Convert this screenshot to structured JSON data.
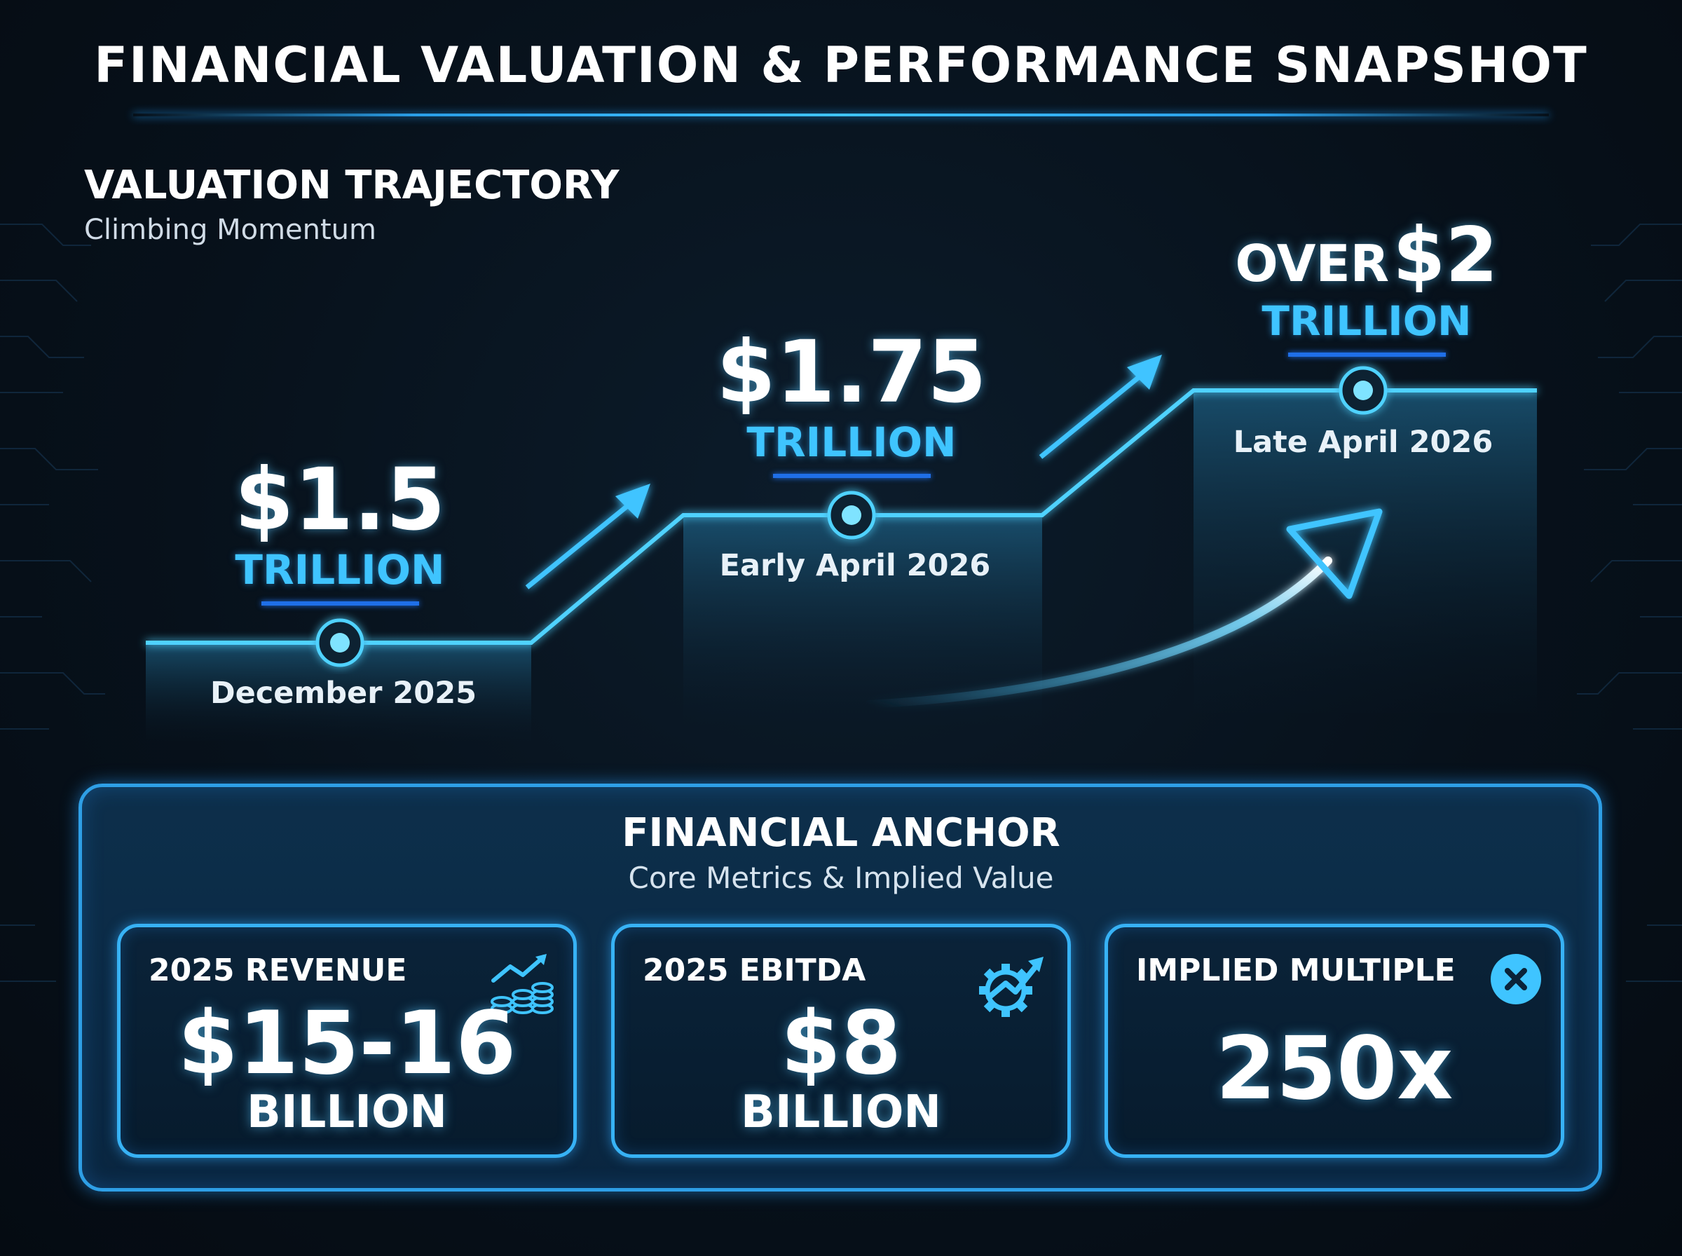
{
  "header": {
    "title": "FINANCIAL VALUATION & PERFORMANCE SNAPSHOT"
  },
  "trajectory": {
    "title": "VALUATION TRAJECTORY",
    "subtitle": "Climbing Momentum",
    "steps": [
      {
        "amount": "$1.5",
        "unit": "TRILLION",
        "date": "December 2025"
      },
      {
        "amount": "$1.75",
        "unit": "TRILLION",
        "date": "Early April 2026"
      },
      {
        "prefix": "OVER",
        "amount": "$2",
        "unit": "TRILLION",
        "date": "Late April 2026"
      }
    ]
  },
  "anchor": {
    "title": "FINANCIAL ANCHOR",
    "subtitle": "Core Metrics & Implied Value",
    "cards": [
      {
        "label": "2025 REVENUE",
        "value": "$15-16",
        "unit": "BILLION",
        "icon": "revenue-chart-coins-icon"
      },
      {
        "label": "2025 EBITDA",
        "value": "$8",
        "unit": "BILLION",
        "icon": "gear-growth-icon"
      },
      {
        "label": "IMPLIED MULTIPLE",
        "value": "250x",
        "icon": "multiply-icon"
      }
    ]
  },
  "colors": {
    "accent": "#3fc4ff",
    "rule": "#1f6fe8",
    "background": "#07111b"
  }
}
